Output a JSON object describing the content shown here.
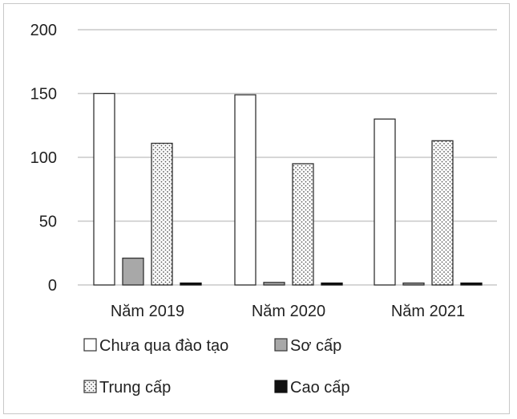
{
  "chart_data": {
    "type": "bar",
    "title": "",
    "xlabel": "",
    "ylabel": "",
    "ylim": [
      0,
      200
    ],
    "yticks": [
      0,
      50,
      100,
      150,
      200
    ],
    "grid": true,
    "legend_position": "bottom",
    "categories": [
      "Năm 2019",
      "Năm 2020",
      "Năm 2021"
    ],
    "series": [
      {
        "name": "Chưa qua đào tạo",
        "values": [
          150,
          149,
          130
        ],
        "fill": "white"
      },
      {
        "name": "Sơ cấp",
        "values": [
          21,
          2,
          1.5
        ],
        "fill": "gray"
      },
      {
        "name": "Trung cấp",
        "values": [
          111,
          95,
          113
        ],
        "fill": "dotted"
      },
      {
        "name": "Cao cấp",
        "values": [
          1.5,
          1.5,
          1.5
        ],
        "fill": "black"
      }
    ],
    "colors": {
      "grid": "#c8c8c8",
      "outline": "#333333",
      "gray_fill": "#a8a8a8",
      "black_fill": "#111111"
    }
  }
}
